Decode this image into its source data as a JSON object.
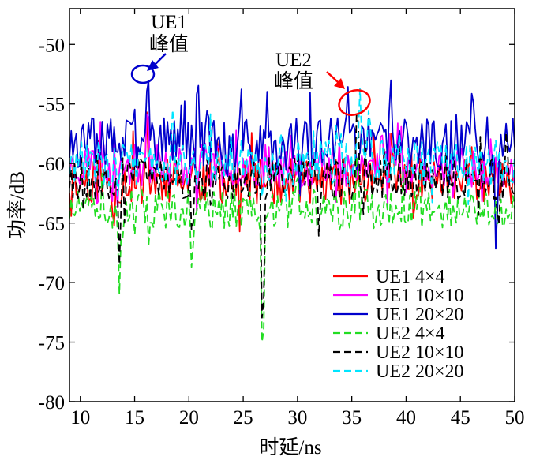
{
  "chart_data": {
    "type": "line",
    "xlabel": "时延/ns",
    "ylabel": "功率/dB",
    "xlim": [
      9,
      50
    ],
    "ylim": [
      -80,
      -47
    ],
    "xticks": [
      10,
      15,
      20,
      25,
      30,
      35,
      40,
      45,
      50
    ],
    "yticks": [
      -50,
      -55,
      -60,
      -65,
      -70,
      -75,
      -80
    ],
    "xtick_labels": [
      "10",
      "15",
      "20",
      "25",
      "30",
      "35",
      "40",
      "45",
      "50"
    ],
    "ytick_labels": [
      "-50",
      "-55",
      "-60",
      "-65",
      "-70",
      "-75",
      "-80"
    ],
    "grid": false,
    "legend_position": "bottom-right",
    "series": [
      {
        "name": "UE1 4×4",
        "color": "#ff0000",
        "dash": "solid",
        "seed": 11,
        "base": -61.5,
        "amp": 1.3,
        "peaks": [
          [
            16.1,
            -55.5
          ],
          [
            38.6,
            -57.5
          ],
          [
            20.5,
            -59.5
          ],
          [
            13.5,
            -63.5
          ],
          [
            32.5,
            -63.5
          ],
          [
            46.5,
            -63.0
          ]
        ]
      },
      {
        "name": "UE1 10×10",
        "color": "#ff00ff",
        "dash": "solid",
        "seed": 23,
        "base": -60.2,
        "amp": 1.2,
        "peaks": [
          [
            16.2,
            -53.5
          ],
          [
            38.5,
            -57.0
          ],
          [
            21.5,
            -58.3
          ],
          [
            11.5,
            -63.5
          ],
          [
            40.0,
            -62.5
          ]
        ]
      },
      {
        "name": "UE1 20×20",
        "color": "#0000cc",
        "dash": "solid",
        "seed": 37,
        "base": -58.4,
        "amp": 1.5,
        "peaks": [
          [
            16.2,
            -51.3
          ],
          [
            38.6,
            -53.0
          ],
          [
            21.7,
            -55.2
          ],
          [
            48.3,
            -68.5
          ],
          [
            23.5,
            -62.0
          ],
          [
            47.8,
            -61.0
          ]
        ]
      },
      {
        "name": "UE2 4×4",
        "color": "#22dd22",
        "dash": "dash",
        "seed": 51,
        "base": -63.8,
        "amp": 1.1,
        "peaks": [
          [
            26.8,
            -79.0
          ],
          [
            13.6,
            -71.0
          ],
          [
            20.3,
            -69.5
          ],
          [
            15.0,
            -66.0
          ],
          [
            48.5,
            -65.5
          ],
          [
            35.5,
            -58.0
          ],
          [
            30.0,
            -60.5
          ]
        ]
      },
      {
        "name": "UE2 10×10",
        "color": "#000000",
        "dash": "dash",
        "seed": 67,
        "base": -61.2,
        "amp": 1.2,
        "peaks": [
          [
            26.8,
            -77.5
          ],
          [
            13.6,
            -68.5
          ],
          [
            20.3,
            -67.0
          ],
          [
            35.5,
            -54.3
          ],
          [
            32.0,
            -66.5
          ],
          [
            48.5,
            -66.5
          ],
          [
            22.0,
            -63.5
          ]
        ]
      },
      {
        "name": "UE2 20×20",
        "color": "#00e5ff",
        "dash": "dash",
        "seed": 83,
        "base": -60.0,
        "amp": 1.3,
        "peaks": [
          [
            35.8,
            -53.0
          ],
          [
            36.6,
            -54.5
          ],
          [
            18.5,
            -55.5
          ],
          [
            26.8,
            -63.5
          ],
          [
            34.0,
            -57.5
          ]
        ]
      }
    ],
    "annotations": [
      {
        "lines": [
          "UE1",
          "峰值"
        ],
        "color": "#0000cc"
      },
      {
        "lines": [
          "UE2",
          "峰值"
        ],
        "color": "#ff0000"
      }
    ]
  }
}
